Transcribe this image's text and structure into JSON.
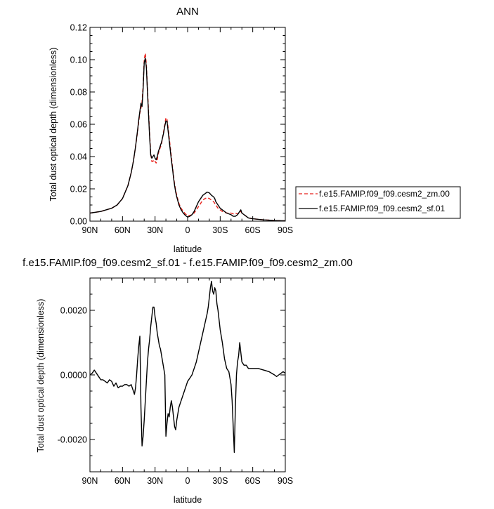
{
  "chart_data": [
    {
      "type": "line",
      "title": "ANN",
      "xlabel": "latitude",
      "ylabel": "Total dust optical depth (dimensionless)",
      "xlim": [
        90,
        -90
      ],
      "ylim": [
        0,
        0.12
      ],
      "xticks": [
        90,
        60,
        30,
        0,
        -30,
        -60,
        -90
      ],
      "xtick_labels": [
        "90N",
        "60N",
        "30N",
        "0",
        "30S",
        "60S",
        "90S"
      ],
      "yticks": [
        0,
        0.02,
        0.04,
        0.06,
        0.08,
        0.1,
        0.12
      ],
      "ytick_labels": [
        "0.00",
        "0.02",
        "0.04",
        "0.06",
        "0.08",
        "0.10",
        "0.12"
      ],
      "grid": false,
      "legend_position": "right",
      "series": [
        {
          "name": "f.e15.FAMIP.f09_f09.cesm2_zm.00",
          "color": "#e8221c",
          "dash": "dashed",
          "x": [
            90,
            80,
            70,
            65,
            60,
            55,
            52,
            50,
            48,
            46,
            45,
            44,
            43,
            42,
            41,
            40,
            39,
            38,
            37,
            36,
            35,
            34,
            33,
            32,
            31,
            30,
            29,
            28,
            27,
            26,
            25,
            24,
            23,
            22,
            21,
            20,
            19,
            18,
            17,
            16,
            15,
            14,
            13,
            12,
            11,
            10,
            8,
            6,
            4,
            2,
            0,
            -2,
            -4,
            -6,
            -8,
            -10,
            -12,
            -14,
            -16,
            -18,
            -20,
            -22,
            -24,
            -25,
            -26,
            -28,
            -30,
            -32,
            -34,
            -36,
            -38,
            -40,
            -42,
            -44,
            -46,
            -48,
            -49,
            -50,
            -52,
            -54,
            -56,
            -60,
            -70,
            -80,
            -90
          ],
          "y": [
            0.005,
            0.006,
            0.008,
            0.01,
            0.014,
            0.022,
            0.03,
            0.037,
            0.046,
            0.056,
            0.062,
            0.067,
            0.07,
            0.074,
            0.084,
            0.1,
            0.104,
            0.097,
            0.082,
            0.068,
            0.054,
            0.042,
            0.037,
            0.037,
            0.038,
            0.037,
            0.036,
            0.038,
            0.042,
            0.044,
            0.046,
            0.048,
            0.052,
            0.056,
            0.06,
            0.064,
            0.063,
            0.058,
            0.052,
            0.046,
            0.04,
            0.034,
            0.028,
            0.023,
            0.019,
            0.016,
            0.011,
            0.008,
            0.006,
            0.0045,
            0.0035,
            0.0035,
            0.004,
            0.005,
            0.007,
            0.009,
            0.011,
            0.013,
            0.014,
            0.0145,
            0.014,
            0.013,
            0.012,
            0.011,
            0.01,
            0.008,
            0.007,
            0.006,
            0.0055,
            0.005,
            0.005,
            0.005,
            0.0045,
            0.005,
            0.0045,
            0.005,
            0.006,
            0.005,
            0.004,
            0.003,
            0.002,
            0.0015,
            0.0008,
            0.0004,
            0.0002
          ]
        },
        {
          "name": "f.e15.FAMIP.f09_f09.cesm2_sf.01",
          "color": "#000000",
          "dash": "solid",
          "x": [
            90,
            80,
            70,
            65,
            60,
            55,
            52,
            50,
            48,
            46,
            45,
            44,
            43,
            42,
            41,
            40,
            39,
            38,
            37,
            36,
            35,
            34,
            33,
            32,
            31,
            30,
            29,
            28,
            27,
            26,
            25,
            24,
            23,
            22,
            21,
            20,
            19,
            18,
            17,
            16,
            15,
            14,
            13,
            12,
            11,
            10,
            8,
            6,
            4,
            2,
            0,
            -2,
            -4,
            -6,
            -8,
            -10,
            -12,
            -14,
            -16,
            -18,
            -20,
            -22,
            -24,
            -25,
            -26,
            -28,
            -30,
            -32,
            -34,
            -36,
            -38,
            -40,
            -42,
            -44,
            -46,
            -48,
            -49,
            -50,
            -52,
            -54,
            -56,
            -60,
            -70,
            -80,
            -90
          ],
          "y": [
            0.005,
            0.006,
            0.008,
            0.01,
            0.014,
            0.022,
            0.03,
            0.037,
            0.046,
            0.057,
            0.063,
            0.068,
            0.073,
            0.071,
            0.082,
            0.098,
            0.101,
            0.095,
            0.08,
            0.066,
            0.052,
            0.041,
            0.039,
            0.04,
            0.041,
            0.039,
            0.038,
            0.04,
            0.043,
            0.045,
            0.047,
            0.049,
            0.052,
            0.055,
            0.059,
            0.062,
            0.062,
            0.056,
            0.05,
            0.044,
            0.038,
            0.033,
            0.027,
            0.022,
            0.018,
            0.015,
            0.01,
            0.007,
            0.005,
            0.0035,
            0.0025,
            0.003,
            0.004,
            0.006,
            0.009,
            0.012,
            0.014,
            0.016,
            0.017,
            0.018,
            0.0175,
            0.016,
            0.015,
            0.014,
            0.012,
            0.01,
            0.008,
            0.007,
            0.006,
            0.005,
            0.0045,
            0.004,
            0.003,
            0.003,
            0.004,
            0.006,
            0.007,
            0.005,
            0.004,
            0.003,
            0.002,
            0.0015,
            0.0008,
            0.0004,
            0.0002
          ]
        }
      ]
    },
    {
      "type": "line",
      "title": "f.e15.FAMIP.f09_f09.cesm2_sf.01 - f.e15.FAMIP.f09_f09.cesm2_zm.00",
      "xlabel": "latitude",
      "ylabel": "Total dust optical depth (dimensionless)",
      "xlim": [
        90,
        -90
      ],
      "ylim": [
        -0.003,
        0.003
      ],
      "xticks": [
        90,
        60,
        30,
        0,
        -30,
        -60,
        -90
      ],
      "xtick_labels": [
        "90N",
        "60N",
        "30N",
        "0",
        "30S",
        "60S",
        "90S"
      ],
      "yticks": [
        -0.002,
        0.0,
        0.002
      ],
      "ytick_labels": [
        "-0.0020",
        "0.0000",
        "0.0020"
      ],
      "grid": false,
      "series": [
        {
          "color": "#000000",
          "dash": "solid",
          "x": [
            90,
            88,
            86,
            84,
            82,
            80,
            78,
            76,
            74,
            72,
            70,
            68,
            66,
            64,
            62,
            60,
            58,
            56,
            54,
            52,
            50,
            49,
            48,
            47,
            46,
            45,
            44,
            43,
            42,
            41,
            40,
            39,
            38,
            37,
            36,
            35,
            34,
            33,
            32,
            31,
            30,
            29,
            28,
            27,
            26,
            25,
            24,
            23,
            22,
            21,
            20,
            19,
            18,
            17,
            16,
            15,
            14,
            13,
            12,
            11,
            10,
            9,
            8,
            7,
            6,
            5,
            4,
            3,
            2,
            1,
            0,
            -2,
            -4,
            -6,
            -8,
            -10,
            -12,
            -14,
            -16,
            -18,
            -19,
            -20,
            -21,
            -22,
            -23,
            -24,
            -25,
            -26,
            -27,
            -28,
            -29,
            -30,
            -32,
            -34,
            -36,
            -38,
            -40,
            -41,
            -42,
            -43,
            -44,
            -45,
            -46,
            -47,
            -48,
            -49,
            -50,
            -52,
            -54,
            -56,
            -60,
            -65,
            -70,
            -75,
            -80,
            -82,
            -84,
            -86,
            -88,
            -90
          ],
          "y": [
            0.0,
            5e-05,
            0.00015,
            5e-05,
            -5e-05,
            -0.00015,
            -0.00015,
            -0.0002,
            -0.00025,
            -0.00015,
            -0.0002,
            -0.00035,
            -0.00025,
            -0.0004,
            -0.00035,
            -0.00035,
            -0.0003,
            -0.0003,
            -0.00035,
            -0.0003,
            -0.0005,
            -0.0006,
            -0.0004,
            0.0,
            0.0005,
            0.0009,
            0.0012,
            -0.001,
            -0.0022,
            -0.0019,
            -0.0014,
            -0.0008,
            -0.0002,
            0.0004,
            0.0008,
            0.0011,
            0.0015,
            0.0018,
            0.0021,
            0.0021,
            0.0018,
            0.0016,
            0.0013,
            0.0011,
            0.0009,
            0.0008,
            0.0006,
            0.0004,
            0.0002,
            0.0,
            -0.0019,
            -0.0015,
            -0.0012,
            -0.0013,
            -0.001,
            -0.0008,
            -0.001,
            -0.0013,
            -0.0016,
            -0.0017,
            -0.0014,
            -0.0012,
            -0.001,
            -0.0009,
            -0.0008,
            -0.0007,
            -0.0006,
            -0.0005,
            -0.0004,
            -0.0003,
            -0.0002,
            -0.0001,
            0.0,
            0.0002,
            0.0004,
            0.0007,
            0.001,
            0.0013,
            0.0016,
            0.0019,
            0.0021,
            0.0024,
            0.0027,
            0.0029,
            0.0026,
            0.0025,
            0.0027,
            0.0026,
            0.0022,
            0.002,
            0.0017,
            0.0014,
            0.001,
            0.0005,
            0.0002,
            0.0001,
            -0.0003,
            -0.0008,
            -0.0016,
            -0.0024,
            -0.001,
            0.0,
            0.0004,
            0.0006,
            0.001,
            0.0007,
            0.0004,
            0.0003,
            0.0003,
            0.0002,
            0.0002,
            0.0002,
            0.00015,
            0.0001,
            0.0,
            -5e-05,
            0.0,
            5e-05,
            0.0001,
            5e-05
          ]
        }
      ]
    }
  ]
}
